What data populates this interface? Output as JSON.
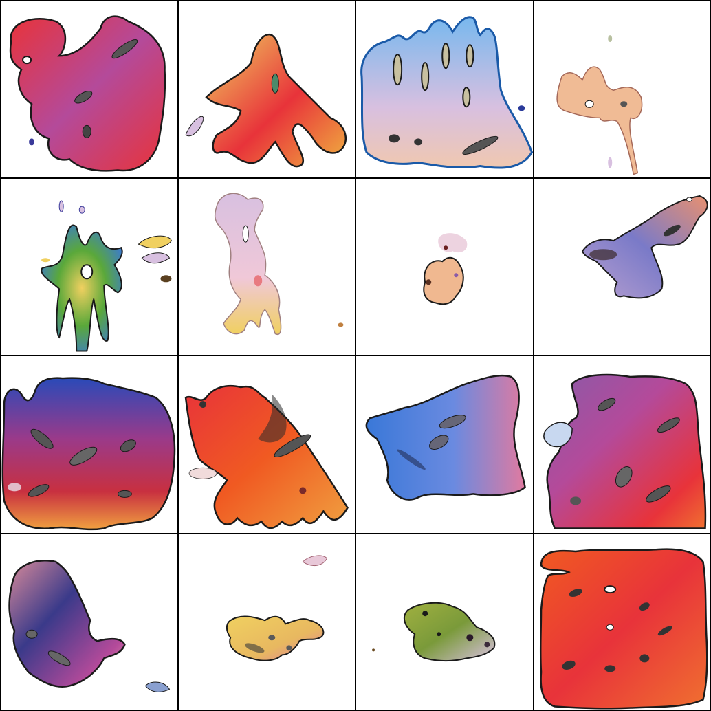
{
  "grid": {
    "rows": 4,
    "cols": 4
  },
  "palette": {
    "red": "#e8333a",
    "orange": "#f05a22",
    "pink": "#e07aa0",
    "magenta": "#b44a9a",
    "purple": "#8a5aa8",
    "blue": "#3a78d8",
    "lightblue": "#78b8ee",
    "navy": "#2a3a9a",
    "yellow": "#f0d060",
    "green": "#5aa83a",
    "lavender": "#d8c0e0",
    "peach": "#f0b890",
    "outline": "#1a1a1a"
  },
  "tiles": [
    {
      "name": "blob-red-purple",
      "colors": [
        "#e8333a",
        "#b44a9a",
        "#e07aa0"
      ]
    },
    {
      "name": "blob-tendrils-yellow",
      "colors": [
        "#f0d060",
        "#e8333a",
        "#5aa83a"
      ]
    },
    {
      "name": "blob-lightblue-fingers",
      "colors": [
        "#78b8ee",
        "#d8c0e0",
        "#f0b8c8"
      ]
    },
    {
      "name": "blob-small-peach",
      "colors": [
        "#f0b890",
        "#e07aa0",
        "#d8c0e0"
      ]
    },
    {
      "name": "blob-green-star",
      "colors": [
        "#5aa83a",
        "#f0d060",
        "#3a78d8"
      ]
    },
    {
      "name": "blob-lavender-vertical",
      "colors": [
        "#d8c0e0",
        "#f0b8c8",
        "#f0d060"
      ]
    },
    {
      "name": "blob-tiny-speckle",
      "colors": [
        "#f0b890",
        "#d8c0e0",
        "#8a5aa8"
      ]
    },
    {
      "name": "blob-diagonal-lavender",
      "colors": [
        "#b8a0d0",
        "#e07aa0",
        "#3a78d8"
      ]
    },
    {
      "name": "blob-blue-red-large",
      "colors": [
        "#2a3a9a",
        "#b44a9a",
        "#e8333a"
      ]
    },
    {
      "name": "blob-red-orange-jagged",
      "colors": [
        "#e8333a",
        "#f05a22",
        "#f0d060"
      ]
    },
    {
      "name": "blob-blue-magenta",
      "colors": [
        "#3a78d8",
        "#78b8ee",
        "#e07aa0"
      ]
    },
    {
      "name": "blob-magenta-red-large",
      "colors": [
        "#b44a9a",
        "#e8333a",
        "#8a5aa8"
      ]
    },
    {
      "name": "blob-purple-curl",
      "colors": [
        "#8a5aa8",
        "#2a3a9a",
        "#e07aa0"
      ]
    },
    {
      "name": "blob-yellow-small",
      "colors": [
        "#f0d060",
        "#f0b890",
        "#e07aa0"
      ]
    },
    {
      "name": "blob-olive-speckle",
      "colors": [
        "#a0b040",
        "#5aa83a",
        "#d8c0e0"
      ]
    },
    {
      "name": "blob-orange-square",
      "colors": [
        "#f05a22",
        "#e8333a",
        "#f07030"
      ]
    }
  ]
}
